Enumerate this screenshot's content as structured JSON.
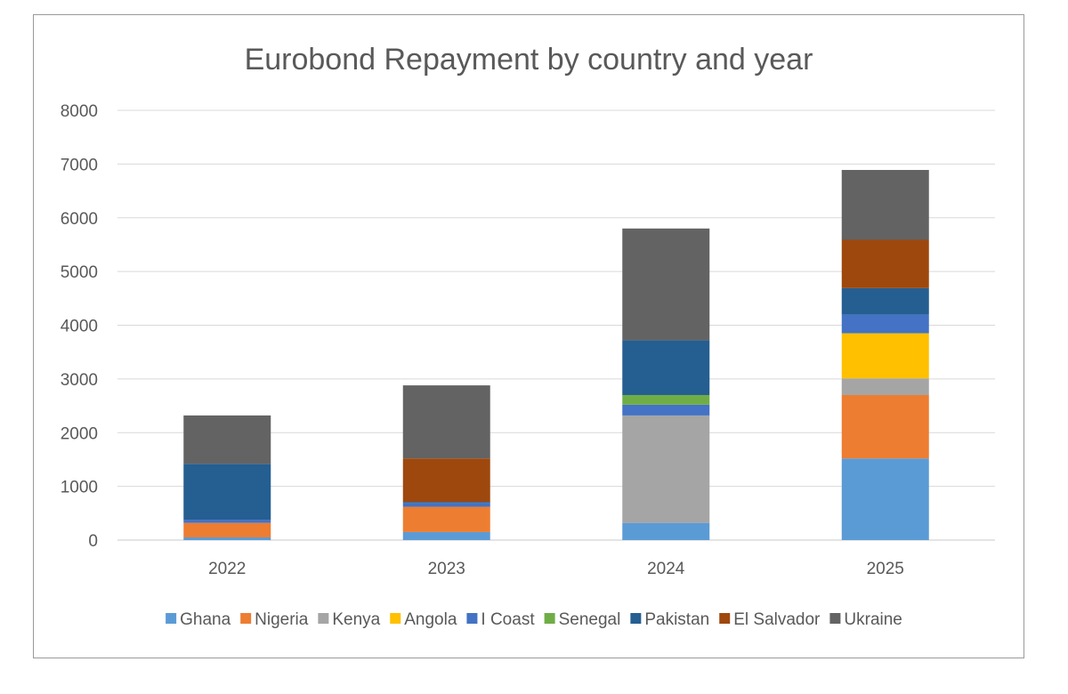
{
  "chart_data": {
    "type": "bar",
    "stacked": true,
    "title": "Eurobond Repayment by country and year",
    "xlabel": "",
    "ylabel": "",
    "ylim": [
      0,
      8000
    ],
    "yticks": [
      0,
      1000,
      2000,
      3000,
      4000,
      5000,
      6000,
      7000,
      8000
    ],
    "grid": true,
    "legend_position": "bottom",
    "categories": [
      "2022",
      "2023",
      "2024",
      "2025"
    ],
    "series": [
      {
        "name": "Ghana",
        "color": "#5B9BD5",
        "values": [
          50,
          150,
          320,
          1520
        ]
      },
      {
        "name": "Nigeria",
        "color": "#ED7D31",
        "values": [
          270,
          470,
          0,
          1180
        ]
      },
      {
        "name": "Kenya",
        "color": "#A5A5A5",
        "values": [
          0,
          0,
          2000,
          310
        ]
      },
      {
        "name": "Angola",
        "color": "#FFC000",
        "values": [
          0,
          0,
          0,
          840
        ]
      },
      {
        "name": "I Coast",
        "color": "#4472C4",
        "values": [
          60,
          70,
          200,
          350
        ]
      },
      {
        "name": "Senegal",
        "color": "#70AD47",
        "values": [
          0,
          0,
          180,
          0
        ]
      },
      {
        "name": "Pakistan",
        "color": "#255E91",
        "values": [
          1040,
          20,
          1020,
          490
        ]
      },
      {
        "name": "El Salvador",
        "color": "#9E480E",
        "values": [
          0,
          810,
          0,
          900
        ]
      },
      {
        "name": "Ukraine",
        "color": "#636363",
        "values": [
          900,
          1360,
          2080,
          1300
        ]
      }
    ]
  }
}
